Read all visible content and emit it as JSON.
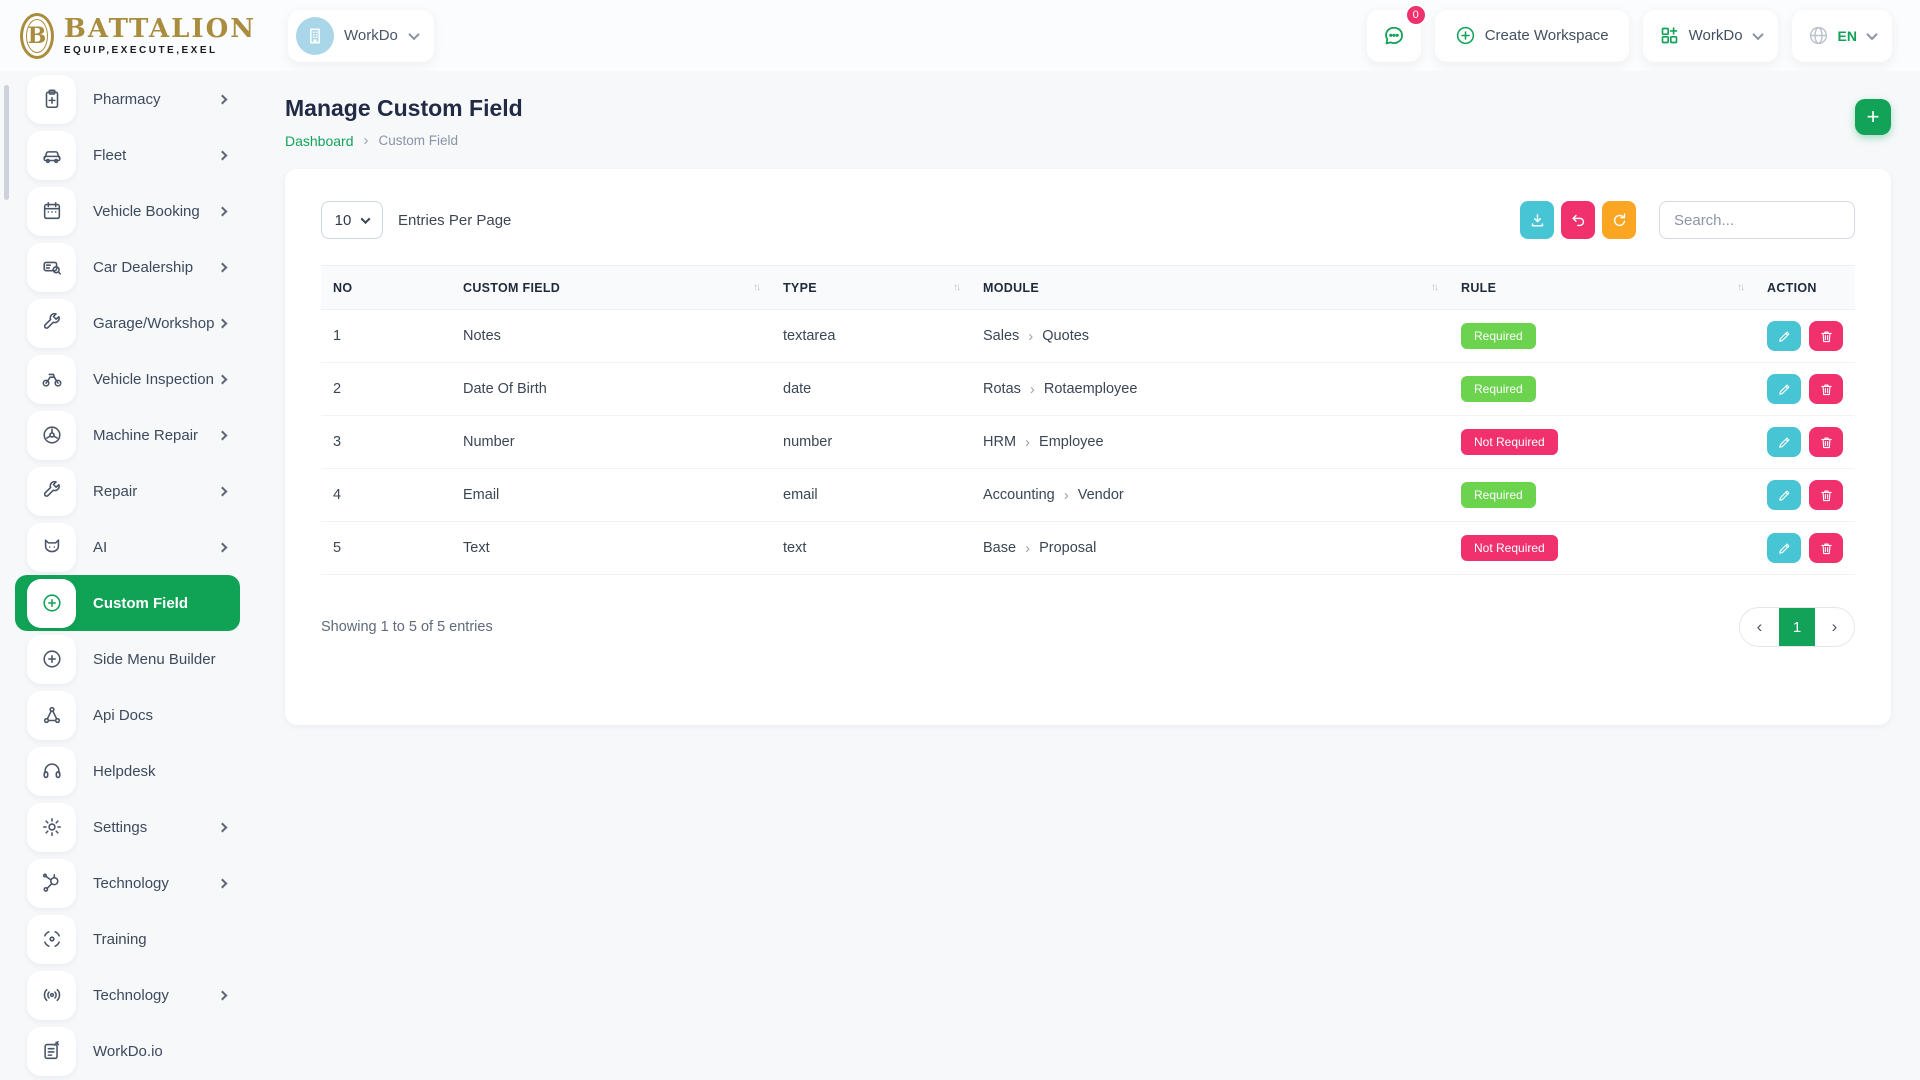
{
  "brand": {
    "name": "BATTALION",
    "tagline": "EQUIP,EXECUTE,EXEL",
    "monogram": "B"
  },
  "header": {
    "workspace_switcher": {
      "label": "WorkDo"
    },
    "messages_badge": "0",
    "create_workspace_label": "Create Workspace",
    "workdo_menu_label": "WorkDo",
    "language_code": "EN"
  },
  "sidebar": {
    "items": [
      {
        "label": "Pharmacy",
        "icon": "clipboard-plus",
        "chevron": true,
        "active": false
      },
      {
        "label": "Fleet",
        "icon": "car",
        "chevron": true,
        "active": false
      },
      {
        "label": "Vehicle Booking",
        "icon": "calendar",
        "chevron": true,
        "active": false
      },
      {
        "label": "Car Dealership",
        "icon": "car-search",
        "chevron": true,
        "active": false
      },
      {
        "label": "Garage/Workshop",
        "icon": "wrench",
        "chevron": true,
        "active": false
      },
      {
        "label": "Vehicle Inspection",
        "icon": "motorbike",
        "chevron": true,
        "active": false
      },
      {
        "label": "Machine Repair",
        "icon": "gear-badge",
        "chevron": true,
        "active": false
      },
      {
        "label": "Repair",
        "icon": "wrench",
        "chevron": true,
        "active": false
      },
      {
        "label": "AI",
        "icon": "ai",
        "chevron": true,
        "active": false
      },
      {
        "label": "Custom Field",
        "icon": "plus-circle",
        "chevron": false,
        "active": true
      },
      {
        "label": "Side Menu Builder",
        "icon": "plus-circle",
        "chevron": false,
        "active": false
      },
      {
        "label": "Api Docs",
        "icon": "api-nodes",
        "chevron": false,
        "active": false
      },
      {
        "label": "Helpdesk",
        "icon": "headset",
        "chevron": false,
        "active": false
      },
      {
        "label": "Settings",
        "icon": "gear",
        "chevron": true,
        "active": false
      },
      {
        "label": "Technology",
        "icon": "network",
        "chevron": true,
        "active": false
      },
      {
        "label": "Training",
        "icon": "target",
        "chevron": false,
        "active": false
      },
      {
        "label": "Technology",
        "icon": "broadcast",
        "chevron": true,
        "active": false
      },
      {
        "label": "WorkDo.io",
        "icon": "note-edit",
        "chevron": false,
        "active": false
      }
    ]
  },
  "page": {
    "title": "Manage Custom Field",
    "breadcrumb_link": "Dashboard",
    "breadcrumb_current": "Custom Field",
    "add_button": "+"
  },
  "toolbar": {
    "entries_value": "10",
    "entries_label": "Entries Per Page",
    "search_placeholder": "Search..."
  },
  "table": {
    "columns": [
      {
        "label": "NO",
        "sortable": false
      },
      {
        "label": "CUSTOM FIELD",
        "sortable": true
      },
      {
        "label": "TYPE",
        "sortable": true
      },
      {
        "label": "MODULE",
        "sortable": true
      },
      {
        "label": "RULE",
        "sortable": true
      },
      {
        "label": "ACTION",
        "sortable": false
      }
    ],
    "rows": [
      {
        "no": "1",
        "custom_field": "Notes",
        "type": "textarea",
        "module": [
          "Sales",
          "Quotes"
        ],
        "rule": "Required",
        "rule_variant": "success"
      },
      {
        "no": "2",
        "custom_field": "Date Of Birth",
        "type": "date",
        "module": [
          "Rotas",
          "Rotaemployee"
        ],
        "rule": "Required",
        "rule_variant": "success"
      },
      {
        "no": "3",
        "custom_field": "Number",
        "type": "number",
        "module": [
          "HRM",
          "Employee"
        ],
        "rule": "Not Required",
        "rule_variant": "danger"
      },
      {
        "no": "4",
        "custom_field": "Email",
        "type": "email",
        "module": [
          "Accounting",
          "Vendor"
        ],
        "rule": "Required",
        "rule_variant": "success"
      },
      {
        "no": "5",
        "custom_field": "Text",
        "type": "text",
        "module": [
          "Base",
          "Proposal"
        ],
        "rule": "Not Required",
        "rule_variant": "danger"
      }
    ]
  },
  "footer": {
    "summary": "Showing 1 to 5 of 5 entries",
    "current_page": "1"
  },
  "colors": {
    "primary_green": "#12a358",
    "badge_success": "#6cd34f",
    "badge_danger": "#f0316e",
    "edit_cyan": "#48c5d4",
    "refresh_orange": "#faa623",
    "logo_gold": "#a98c3e",
    "workspace_avatar_blue": "#a9d6e8"
  }
}
